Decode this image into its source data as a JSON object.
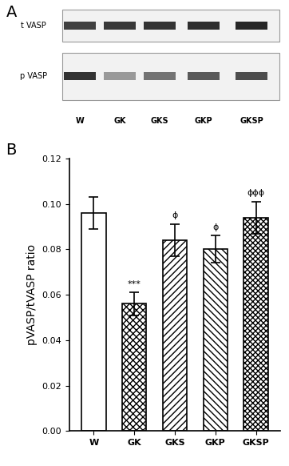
{
  "panel_labels": [
    "A",
    "B"
  ],
  "blot": {
    "rows": [
      "t VASP",
      "p VASP"
    ],
    "lanes": [
      "W",
      "GK",
      "GKS",
      "GKP",
      "GKSP"
    ]
  },
  "chart_data": {
    "type": "bar",
    "y_label": "pVASP/tVASP ratio",
    "categories": [
      "W",
      "GK",
      "GKS",
      "GKP",
      "GKSP"
    ],
    "values": [
      0.096,
      0.056,
      0.084,
      0.08,
      0.094
    ],
    "errors": [
      0.007,
      0.005,
      0.007,
      0.006,
      0.007
    ],
    "annotations": [
      "",
      "***",
      "ϕ",
      "ϕ",
      "ϕϕϕ"
    ],
    "color": "#ffffff",
    "ylim": [
      0,
      0.12
    ],
    "yticks": [
      {
        "value": 0,
        "label": "0.00"
      },
      {
        "value": 0.02,
        "label": "0.02"
      },
      {
        "value": 0.04,
        "label": "0.04"
      },
      {
        "value": 0.06,
        "label": "0.06"
      },
      {
        "value": 0.08,
        "label": "0.08"
      },
      {
        "value": 0.1,
        "label": "0.10"
      },
      {
        "value": 0.12,
        "label": "0.12"
      }
    ],
    "grid": false
  }
}
